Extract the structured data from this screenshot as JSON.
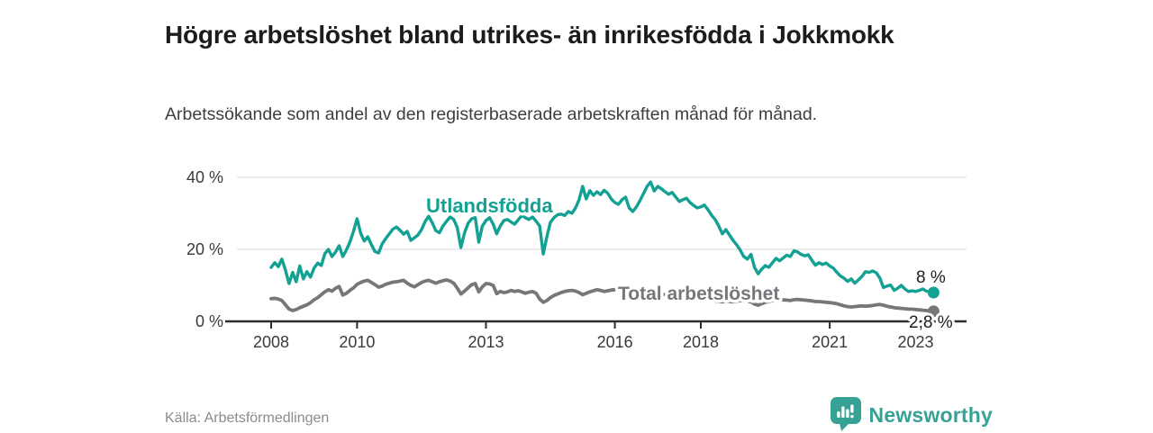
{
  "header": {
    "title": "Högre arbetslöshet bland utrikes- än inrikesfödda i Jokkmokk",
    "subtitle": "Arbetssökande som andel av den registerbaserade arbetskraften månad för månad."
  },
  "footer": {
    "source": "Källa: Arbetsförmedlingen",
    "brand": "Newsworthy"
  },
  "icons": {
    "brand_logo": "bar-chart-speech-bubble-icon"
  },
  "colors": {
    "series_utlandsfodda": "#12a192",
    "series_total": "#77777b",
    "axis": "#2d2d2d",
    "grid": "#e4e4e4",
    "end_label_text": "#1d1d1d",
    "brand_teal": "#36a295",
    "title_text": "#1c1c1c",
    "muted_text": "#8a8a90"
  },
  "chart_data": {
    "type": "line",
    "title": "Högre arbetslöshet bland utrikes- än inrikesfödda i Jokkmokk",
    "subtitle": "Arbetssökande som andel av den registerbaserade arbetskraften månad för månad.",
    "unit": "%",
    "frequency": "monthly",
    "x_start_year": 2008,
    "x_end": "2023-06",
    "ylim": [
      0,
      42
    ],
    "grid": "horizontal-gridlines-at-20-and-40",
    "legend_position": "inline-labels-on-lines",
    "x_ticks": [
      {
        "year": 2008,
        "label": "2008"
      },
      {
        "year": 2010,
        "label": "2010"
      },
      {
        "year": 2013,
        "label": "2013"
      },
      {
        "year": 2016,
        "label": "2016"
      },
      {
        "year": 2018,
        "label": "2018"
      },
      {
        "year": 2021,
        "label": "2021"
      },
      {
        "year": 2023,
        "label": "2023"
      }
    ],
    "y_ticks": [
      {
        "value": 0,
        "label": "0 %"
      },
      {
        "value": 20,
        "label": "20 %"
      },
      {
        "value": 40,
        "label": "40 %"
      }
    ],
    "series": [
      {
        "name": "Utlandsfödda",
        "color": "#12a192",
        "end_label": "8 %",
        "end_value": 8.0,
        "values": [
          15.0,
          16.3,
          15.2,
          17.3,
          14.2,
          10.5,
          13.6,
          11.0,
          15.4,
          11.8,
          13.8,
          12.3,
          14.8,
          16.2,
          15.5,
          18.8,
          20.0,
          18.0,
          19.3,
          21.0,
          18.0,
          19.8,
          22.0,
          25.0,
          28.5,
          24.5,
          22.3,
          23.5,
          21.3,
          19.4,
          19.0,
          21.5,
          23.0,
          24.3,
          25.6,
          26.2,
          25.3,
          24.2,
          25.0,
          22.5,
          23.2,
          24.0,
          25.5,
          27.7,
          29.2,
          27.4,
          25.2,
          24.6,
          26.5,
          27.8,
          29.0,
          28.3,
          26.0,
          20.5,
          24.5,
          27.2,
          28.5,
          28.8,
          22.0,
          26.5,
          28.0,
          28.8,
          27.0,
          24.3,
          26.5,
          28.0,
          28.3,
          27.6,
          27.0,
          28.2,
          29.4,
          28.8,
          28.3,
          29.0,
          27.8,
          26.5,
          18.7,
          23.5,
          27.5,
          28.8,
          29.6,
          29.8,
          29.4,
          30.5,
          30.0,
          31.5,
          33.8,
          37.5,
          34.0,
          36.3,
          35.0,
          36.0,
          35.2,
          36.4,
          35.6,
          34.0,
          33.0,
          32.5,
          33.8,
          34.5,
          31.5,
          30.5,
          31.8,
          33.5,
          35.5,
          37.5,
          38.7,
          36.2,
          37.5,
          36.8,
          36.0,
          35.3,
          35.8,
          34.5,
          33.3,
          33.8,
          34.2,
          33.0,
          32.2,
          31.5,
          31.8,
          32.3,
          31.0,
          29.5,
          28.3,
          26.5,
          24.3,
          25.5,
          24.0,
          22.5,
          21.3,
          19.8,
          18.0,
          17.3,
          18.6,
          15.0,
          13.2,
          14.5,
          15.5,
          15.0,
          16.3,
          17.5,
          16.8,
          17.6,
          18.4,
          18.0,
          19.6,
          19.3,
          18.6,
          18.2,
          18.5,
          17.0,
          15.6,
          16.3,
          15.8,
          16.2,
          15.4,
          14.8,
          13.6,
          12.6,
          12.0,
          11.1,
          11.8,
          10.6,
          11.5,
          12.5,
          13.8,
          13.6,
          14.0,
          13.5,
          12.0,
          9.4,
          9.8,
          10.1,
          8.6,
          9.2,
          10.0,
          9.0,
          8.3,
          8.5,
          8.3,
          8.6,
          9.0,
          8.4,
          8.2,
          8.0
        ]
      },
      {
        "name": "Total arbetslöshet",
        "color": "#77777b",
        "end_label": "2,8 %",
        "end_value": 2.8,
        "values": [
          6.3,
          6.4,
          6.2,
          5.8,
          4.6,
          3.4,
          3.0,
          3.3,
          3.8,
          4.2,
          4.6,
          5.2,
          6.0,
          6.6,
          7.4,
          8.2,
          8.8,
          8.4,
          9.2,
          9.7,
          7.3,
          7.8,
          8.6,
          9.3,
          10.3,
          10.8,
          11.2,
          11.4,
          10.8,
          10.2,
          9.5,
          9.8,
          10.3,
          10.6,
          10.9,
          11.0,
          11.2,
          11.4,
          10.6,
          10.0,
          9.6,
          10.2,
          10.8,
          11.2,
          11.4,
          11.0,
          10.6,
          11.0,
          11.3,
          11.5,
          11.2,
          10.6,
          9.2,
          7.6,
          8.4,
          9.3,
          10.2,
          10.5,
          8.2,
          9.6,
          10.5,
          10.4,
          10.0,
          7.7,
          8.3,
          8.0,
          8.2,
          8.6,
          8.3,
          8.5,
          8.2,
          7.8,
          8.1,
          8.3,
          7.8,
          6.2,
          5.3,
          5.8,
          6.6,
          7.2,
          7.6,
          8.0,
          8.3,
          8.5,
          8.6,
          8.4,
          8.0,
          7.4,
          7.8,
          8.2,
          8.5,
          8.8,
          8.6,
          8.3,
          8.5,
          8.7,
          8.8,
          9.0,
          8.6,
          8.2,
          7.8,
          8.0,
          8.3,
          8.6,
          8.4,
          8.2,
          8.0,
          7.8,
          7.8,
          7.6,
          7.4,
          7.0,
          6.8,
          6.6,
          6.5,
          6.7,
          6.6,
          6.4,
          6.3,
          6.2,
          6.3,
          6.5,
          6.2,
          5.9,
          5.7,
          5.5,
          5.4,
          5.6,
          5.5,
          5.4,
          5.6,
          5.8,
          5.7,
          5.6,
          5.4,
          4.8,
          4.5,
          4.9,
          5.3,
          5.5,
          5.8,
          6.0,
          5.9,
          6.0,
          5.9,
          5.8,
          6.0,
          6.1,
          6.0,
          5.9,
          5.8,
          5.7,
          5.5,
          5.5,
          5.4,
          5.3,
          5.2,
          5.1,
          4.9,
          4.6,
          4.3,
          4.1,
          4.0,
          4.1,
          4.2,
          4.3,
          4.2,
          4.3,
          4.4,
          4.6,
          4.7,
          4.5,
          4.2,
          4.0,
          3.8,
          3.7,
          3.6,
          3.5,
          3.4,
          3.4,
          3.3,
          3.2,
          3.1,
          3.0,
          2.9,
          2.8
        ]
      }
    ]
  }
}
